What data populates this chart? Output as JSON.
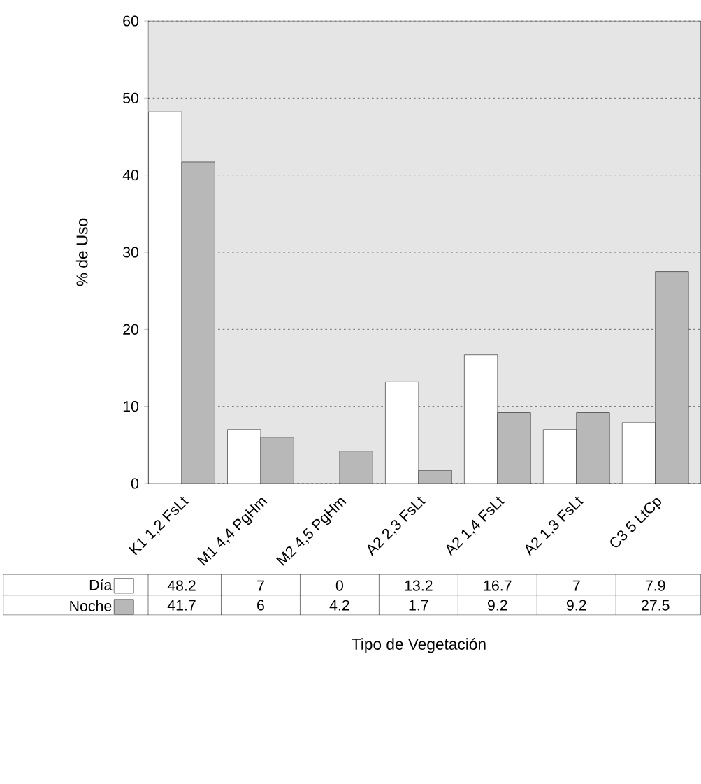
{
  "chart_data": {
    "type": "bar",
    "xlabel": "Tipo de Vegetación",
    "ylabel": "% de Uso",
    "categories": [
      "K1 1,2 FsLt",
      "M1 4,4 PgHm",
      "M2 4,5 PgHm",
      "A2 2,3 FsLt",
      "A2 1,4 FsLt",
      "A2 1,3 FsLt",
      "C3 5   LtCp"
    ],
    "series": [
      {
        "name": "Día",
        "color": "#ffffff",
        "values": [
          48.2,
          7,
          0,
          13.2,
          16.7,
          7,
          7.9
        ]
      },
      {
        "name": "Noche",
        "color": "#b8b8b8",
        "values": [
          41.7,
          6,
          4.2,
          1.7,
          9.2,
          9.2,
          27.5
        ]
      }
    ],
    "ylim": [
      0,
      60
    ],
    "yticks": [
      0,
      10,
      20,
      30,
      40,
      50,
      60
    ],
    "grid": "y",
    "legend": "bottom",
    "data_labels": true
  }
}
